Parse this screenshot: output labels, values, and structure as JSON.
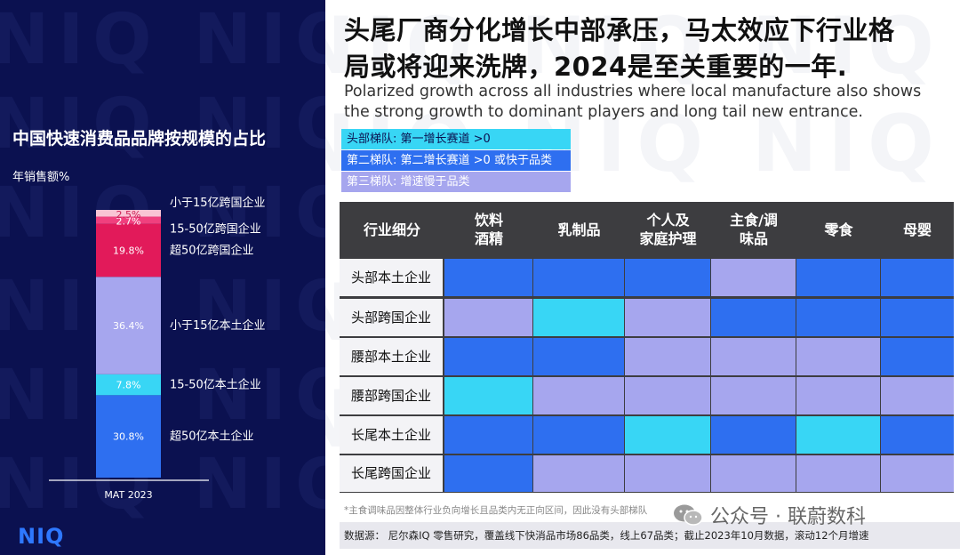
{
  "watermark_text": "NIQ",
  "left": {
    "title": "中国快速消费品品牌按规模的占比",
    "subtitle": "年销售额%",
    "logo": "NIQ"
  },
  "chart_data": [
    {
      "type": "bar",
      "stacked": true,
      "categories": [
        "MAT 2023"
      ],
      "ylim": [
        0,
        100
      ],
      "segments": [
        {
          "name": "超50亿本土企业",
          "value": 30.8,
          "label": "30.8%",
          "color": "#2e6ff0"
        },
        {
          "name": "15-50亿本土企业",
          "value": 7.8,
          "label": "7.8%",
          "color": "#38d6f5"
        },
        {
          "name": "小于15亿本土企业",
          "value": 36.4,
          "label": "36.4%",
          "color": "#a6a6ee"
        },
        {
          "name": "超50亿跨国企业",
          "value": 19.8,
          "label": "19.8%",
          "color": "#e21a5a"
        },
        {
          "name": "15-50亿跨国企业",
          "value": 2.7,
          "label": "2.7%",
          "color": "#f0407e"
        },
        {
          "name": "小于15亿跨国企业",
          "value": 2.5,
          "label": "2.5%",
          "color": "#f9c4d4"
        }
      ]
    },
    {
      "type": "heatmap",
      "title": "头尾厂商分化增长中部承压，马太效应下行业格局或将迎来洗牌，2024是至关重要的一年.",
      "corner_label": "行业细分",
      "columns": [
        "饮料\n酒精",
        "乳制品",
        "个人及\n家庭护理",
        "主食/调\n味品",
        "零食",
        "母婴"
      ],
      "rows": [
        "头部本土企业",
        "头部跨国企业",
        "腰部本土企业",
        "腰部跨国企业",
        "长尾本土企业",
        "长尾跨国企业"
      ],
      "tiers": {
        "1": {
          "label": "头部梯队: 第一增长赛道 >0",
          "color": "#38d6f5"
        },
        "2": {
          "label": "第二梯队: 第二增长赛道 >0 或快于品类",
          "color": "#2e6ff0"
        },
        "3": {
          "label": "第三梯队: 增速慢于品类",
          "color": "#a6a6ee"
        }
      },
      "values": [
        [
          2,
          2,
          2,
          3,
          2,
          2
        ],
        [
          3,
          1,
          3,
          2,
          2,
          2
        ],
        [
          2,
          2,
          3,
          3,
          3,
          2
        ],
        [
          1,
          3,
          3,
          3,
          3,
          3
        ],
        [
          2,
          2,
          1,
          2,
          1,
          2
        ],
        [
          2,
          3,
          3,
          3,
          3,
          3
        ]
      ]
    }
  ],
  "right": {
    "title_lines": [
      "头尾厂商分化增长中部承压，马太效应下行业格",
      "局或将迎来洗牌，2024是至关重要的一年."
    ],
    "subtitle_lines": [
      "Polarized growth across all industries where local manufacture also shows",
      "the strong growth to dominant players and long tail new entrance."
    ],
    "footnote": "*主食调味品因整体行业负向增长且品类内无正向区间，因此没有头部梯队",
    "source": "数据源： 尼尔森IQ 零售研究，覆盖线下快消品市场86品类，线上67品类；截止2023年10月数据，滚动12个月增速",
    "wechat_label": "公众号 · 联蔚数科"
  }
}
